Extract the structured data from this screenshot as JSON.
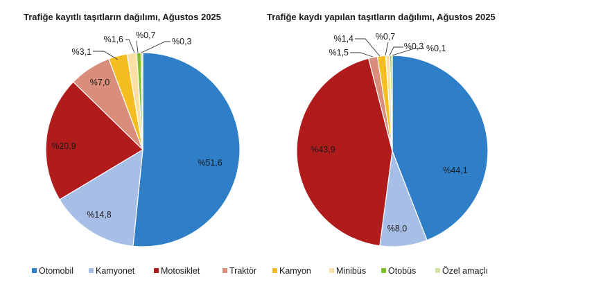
{
  "chart_data": [
    {
      "type": "pie",
      "title": "Trafiğe kayıtlı taşıtların dağılımı, Ağustos 2025",
      "categories": [
        "Otomobil",
        "Kamyonet",
        "Motosiklet",
        "Traktör",
        "Kamyon",
        "Minibüs",
        "Otobüs",
        "Özel amaçlı"
      ],
      "values": [
        51.6,
        14.8,
        20.9,
        7.0,
        3.1,
        1.6,
        0.7,
        0.3
      ],
      "labels": [
        "%51,6",
        "%14,8",
        "%20,9",
        "%7,0",
        "%3,1",
        "%1,6",
        "%0,7",
        "%0,3"
      ]
    },
    {
      "type": "pie",
      "title": "Trafiğe kaydı yapılan taşıtların dağılımı, Ağustos 2025",
      "categories": [
        "Otomobil",
        "Kamyonet",
        "Motosiklet",
        "Traktör",
        "Kamyon",
        "Minibüs",
        "Otobüs",
        "Özel amaçlı"
      ],
      "values": [
        44.1,
        8.0,
        43.9,
        1.5,
        1.4,
        0.7,
        0.3,
        0.1
      ],
      "labels": [
        "%44,1",
        "%8,0",
        "%43,9",
        "%1,5",
        "%1,4",
        "%0,7",
        "%0,3",
        "%0,1"
      ]
    }
  ],
  "legend": {
    "position": "bottom",
    "items": [
      {
        "label": "Otomobil",
        "color": "#2e7fc7"
      },
      {
        "label": "Kamyonet",
        "color": "#a7bee6"
      },
      {
        "label": "Motosiklet",
        "color": "#b01b1b"
      },
      {
        "label": "Traktör",
        "color": "#d98d7a"
      },
      {
        "label": "Kamyon",
        "color": "#f6bd21"
      },
      {
        "label": "Minibüs",
        "color": "#fbe0a6"
      },
      {
        "label": "Otobüs",
        "color": "#7fbf2a"
      },
      {
        "label": "Özel amaçlı",
        "color": "#d2e4a6"
      }
    ]
  }
}
